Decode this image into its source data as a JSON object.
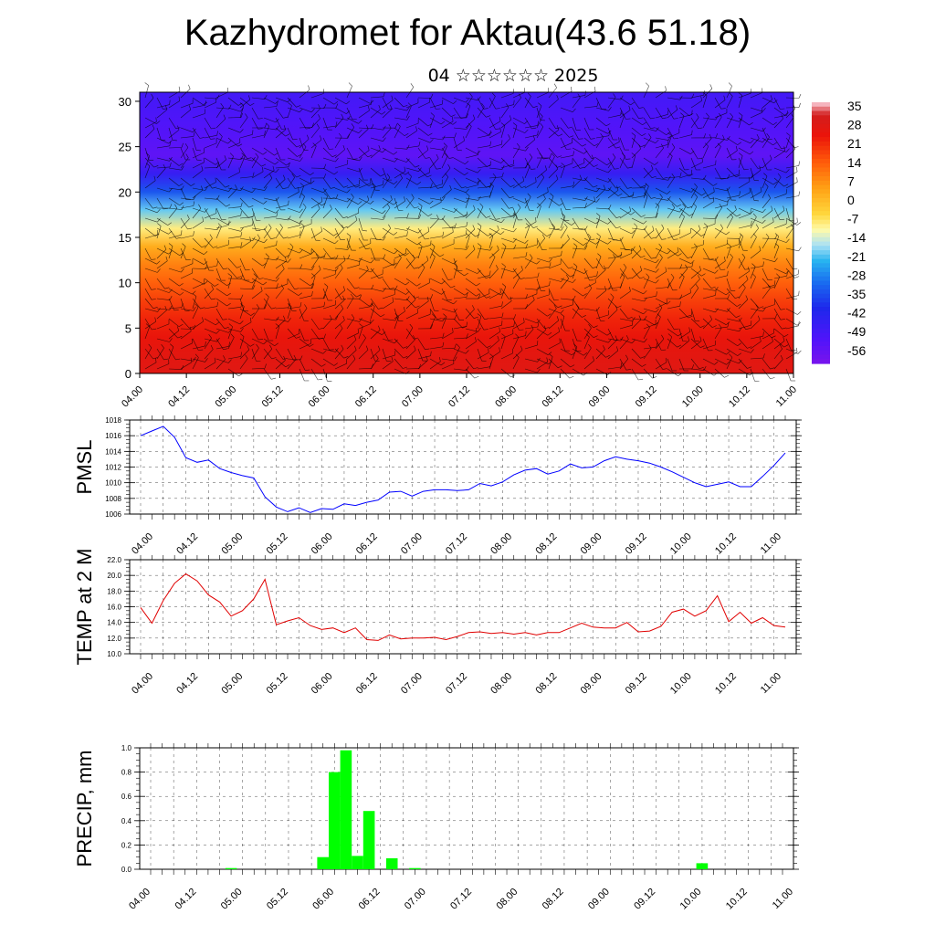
{
  "title": "Kazhydromet for Aktau(43.6 51.18)",
  "subtitle": "04 ☆☆☆☆☆☆ 2025",
  "chart_data": [
    {
      "type": "heatmap",
      "title": "Kazhydromet for Aktau(43.6 51.18)",
      "subtitle": "04 ☆☆☆☆☆☆ 2025",
      "x_ticks": [
        "04.00",
        "04.12",
        "05.00",
        "05.12",
        "06.00",
        "06.12",
        "07.00",
        "07.12",
        "08.00",
        "08.12",
        "09.00",
        "09.12",
        "10.00",
        "10.12",
        "11.00"
      ],
      "y_ticks": [
        "0",
        "5",
        "10",
        "15",
        "20",
        "25",
        "30"
      ],
      "ylim": [
        0,
        31
      ],
      "colorbar_labels": [
        "35",
        "28",
        "21",
        "14",
        "7",
        "0",
        "-7",
        "-14",
        "-21",
        "-28",
        "-35",
        "-42",
        "-49",
        "-56"
      ],
      "colorbar_range": [
        -63,
        42
      ],
      "temperature_profile": [
        {
          "level": 0,
          "value": 33
        },
        {
          "level": 2,
          "value": 32
        },
        {
          "level": 4,
          "value": 30
        },
        {
          "level": 6,
          "value": 27
        },
        {
          "level": 8,
          "value": 23
        },
        {
          "level": 10,
          "value": 18
        },
        {
          "level": 12,
          "value": 13
        },
        {
          "level": 14,
          "value": 6
        },
        {
          "level": 16,
          "value": -6
        },
        {
          "level": 18,
          "value": -18
        },
        {
          "level": 20,
          "value": -33
        },
        {
          "level": 22,
          "value": -46
        },
        {
          "level": 24,
          "value": -56
        },
        {
          "level": 26,
          "value": -54
        },
        {
          "level": 28,
          "value": -52
        },
        {
          "level": 30,
          "value": -50
        },
        {
          "level": 31,
          "value": -49
        }
      ],
      "wind_barbs": true
    },
    {
      "type": "line",
      "ylabel": "PMSL",
      "ylim": [
        1006,
        1018
      ],
      "yticks": [
        "1018",
        "1016",
        "1014",
        "1012",
        "1010",
        "1008",
        "1006"
      ],
      "x_ticks": [
        "04.00",
        "04.12",
        "05.00",
        "05.12",
        "06.00",
        "06.12",
        "07.00",
        "07.12",
        "08.00",
        "08.12",
        "09.00",
        "09.12",
        "10.00",
        "10.12",
        "11.00"
      ],
      "series": [
        {
          "color": "#0000ff",
          "values": [
            1016.0,
            1016.6,
            1017.2,
            1015.8,
            1013.2,
            1012.6,
            1012.9,
            1011.8,
            1011.3,
            1010.9,
            1010.6,
            1008.2,
            1006.9,
            1006.3,
            1006.8,
            1006.2,
            1006.7,
            1006.6,
            1007.3,
            1007.1,
            1007.5,
            1007.8,
            1008.8,
            1008.9,
            1008.3,
            1008.9,
            1009.1,
            1009.1,
            1009.0,
            1009.1,
            1009.9,
            1009.6,
            1010.1,
            1011.0,
            1011.6,
            1011.8,
            1011.1,
            1011.5,
            1012.4,
            1011.9,
            1012.0,
            1012.8,
            1013.3,
            1013.0,
            1012.8,
            1012.5,
            1012.0,
            1011.4,
            1010.7,
            1010.0,
            1009.5,
            1009.8,
            1010.1,
            1009.5,
            1009.5,
            1010.8,
            1012.2,
            1013.8
          ]
        }
      ]
    },
    {
      "type": "line",
      "ylabel": "TEMP at 2 M",
      "ylim": [
        10.0,
        22.0
      ],
      "yticks": [
        "22.0",
        "20.0",
        "18.0",
        "16.0",
        "14.0",
        "12.0",
        "10.0"
      ],
      "x_ticks": [
        "04.00",
        "04.12",
        "05.00",
        "05.12",
        "06.00",
        "06.12",
        "07.00",
        "07.12",
        "08.00",
        "08.12",
        "09.00",
        "09.12",
        "10.00",
        "10.12",
        "11.00"
      ],
      "series": [
        {
          "color": "#e00000",
          "values": [
            15.9,
            13.9,
            16.8,
            19.0,
            20.2,
            19.3,
            17.5,
            16.6,
            14.8,
            15.5,
            17.0,
            19.5,
            13.7,
            14.2,
            14.6,
            13.6,
            13.1,
            13.3,
            12.7,
            13.3,
            11.8,
            11.7,
            12.4,
            11.9,
            12.0,
            12.0,
            12.1,
            11.8,
            12.2,
            12.7,
            12.8,
            12.6,
            12.7,
            12.5,
            12.7,
            12.4,
            12.7,
            12.7,
            13.3,
            13.9,
            13.4,
            13.3,
            13.3,
            14.0,
            12.8,
            12.9,
            13.5,
            15.3,
            15.7,
            14.8,
            15.5,
            17.4,
            14.1,
            15.3,
            13.9,
            14.6,
            13.6,
            13.4
          ]
        }
      ]
    },
    {
      "type": "bar",
      "ylabel": "PRECIP, mm",
      "ylim": [
        0.0,
        1.0
      ],
      "yticks": [
        "1.0",
        "0.8",
        "0.6",
        "0.4",
        "0.2",
        "0.0"
      ],
      "x_ticks": [
        "04.00",
        "04.12",
        "05.00",
        "05.12",
        "06.00",
        "06.12",
        "07.00",
        "07.12",
        "08.00",
        "08.12",
        "09.00",
        "09.12",
        "10.00",
        "10.12",
        "11.00"
      ],
      "series": [
        {
          "color": "#00ff00",
          "values": [
            0,
            0,
            0,
            0,
            0,
            0,
            0,
            0.01,
            0,
            0,
            0,
            0,
            0,
            0,
            0,
            0.1,
            0.8,
            0.98,
            0.11,
            0.48,
            0,
            0.09,
            0,
            0.01,
            0,
            0,
            0,
            0,
            0,
            0,
            0,
            0,
            0,
            0,
            0,
            0,
            0,
            0,
            0,
            0,
            0,
            0,
            0,
            0,
            0,
            0,
            0,
            0,
            0.05,
            0,
            0,
            0,
            0,
            0,
            0,
            0
          ]
        }
      ]
    }
  ]
}
